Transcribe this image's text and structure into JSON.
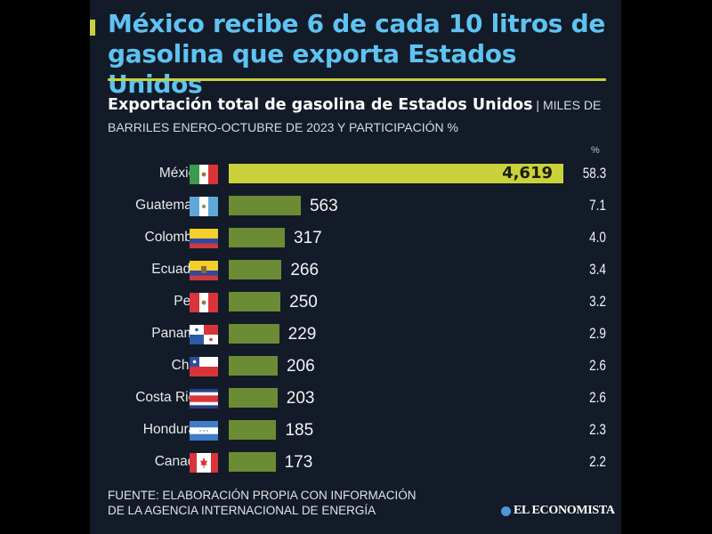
{
  "header": {
    "title": "México recibe 6 de cada 10 litros de gasolina que exporta Estados Unidos",
    "subtitle_bold": "Exportación total de gasolina de Estados Unidos",
    "subtitle_separator": " | ",
    "subtitle_rest": "MILES DE BARRILES ENERO-OCTUBRE DE 2023 Y PARTICIPACIÓN %"
  },
  "colors": {
    "title": "#5ec3f2",
    "accent": "#c9d23a",
    "bar": "#6c8b35",
    "bar_highlight": "#c9d23a",
    "background": "#121b27"
  },
  "chart_data": {
    "type": "bar",
    "orientation": "horizontal",
    "title": "Exportación total de gasolina de Estados Unidos",
    "unit": "MILES DE BARRILES ENERO-OCTUBRE DE 2023 Y PARTICIPACIÓN %",
    "pct_header": "%",
    "categories": [
      "México",
      "Guatemala",
      "Colombia",
      "Ecuador",
      "Perú",
      "Panamá",
      "Chile",
      "Costa Rica",
      "Honduras",
      "Canadá"
    ],
    "value_labels": [
      "4,619",
      "563",
      "317",
      "266",
      "250",
      "229",
      "206",
      "203",
      "185",
      "173"
    ],
    "values": [
      4619,
      563,
      317,
      266,
      250,
      229,
      206,
      203,
      185,
      173
    ],
    "pct_labels": [
      "58.3",
      "7.1",
      "4.0",
      "3.4",
      "3.2",
      "2.9",
      "2.6",
      "2.6",
      "2.3",
      "2.2"
    ],
    "percent": [
      58.3,
      7.1,
      4.0,
      3.4,
      3.2,
      2.9,
      2.6,
      2.6,
      2.3,
      2.2
    ],
    "flags": [
      "mexico-flag-icon",
      "guatemala-flag-icon",
      "colombia-flag-icon",
      "ecuador-flag-icon",
      "peru-flag-icon",
      "panama-flag-icon",
      "chile-flag-icon",
      "costa-rica-flag-icon",
      "honduras-flag-icon",
      "canada-flag-icon"
    ],
    "highlight": "México"
  },
  "footer": {
    "source_line1": "FUENTE: ELABORACIÓN PROPIA CON INFORMACIÓN",
    "source_line2": "DE LA AGENCIA INTERNACIONAL DE ENERGÍA",
    "brand": "EL ECONOMISTA"
  }
}
